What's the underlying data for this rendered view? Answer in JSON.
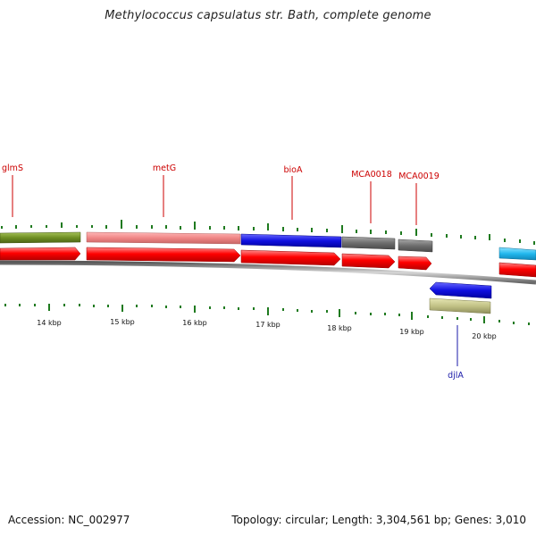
{
  "title": "Methylococcus capsulatus str. Bath, complete genome",
  "footer": {
    "accession": "Accession: NC_002977",
    "stats": "Topology: circular; Length: 3,304,561 bp; Genes: 3,010"
  },
  "colors": {
    "forward_label": "#cc0000",
    "reverse_label": "#1a1aa8",
    "cds_forward": "#ff0000",
    "tick": "#1f7a1f",
    "backbone": "#888888"
  },
  "kbp_labels": [
    "14 kbp",
    "15 kbp",
    "16 kbp",
    "17 kbp",
    "18 kbp",
    "19 kbp",
    "20 kbp"
  ],
  "forward_genes": [
    {
      "label": "glmS",
      "fill": "#7a9a2e"
    },
    {
      "label": "metG",
      "fill": "#f08a8a"
    },
    {
      "label": "bioA",
      "fill": "#1a1ae0"
    },
    {
      "label": "MCA0018",
      "fill": "#707070"
    },
    {
      "label": "MCA0019",
      "fill": "#707070"
    },
    {
      "label": "",
      "fill": "#33c3f0"
    }
  ],
  "reverse_genes": [
    {
      "label": "djlA",
      "fill": "#1a1ae0",
      "cog_fill": "#c8c88a"
    }
  ]
}
